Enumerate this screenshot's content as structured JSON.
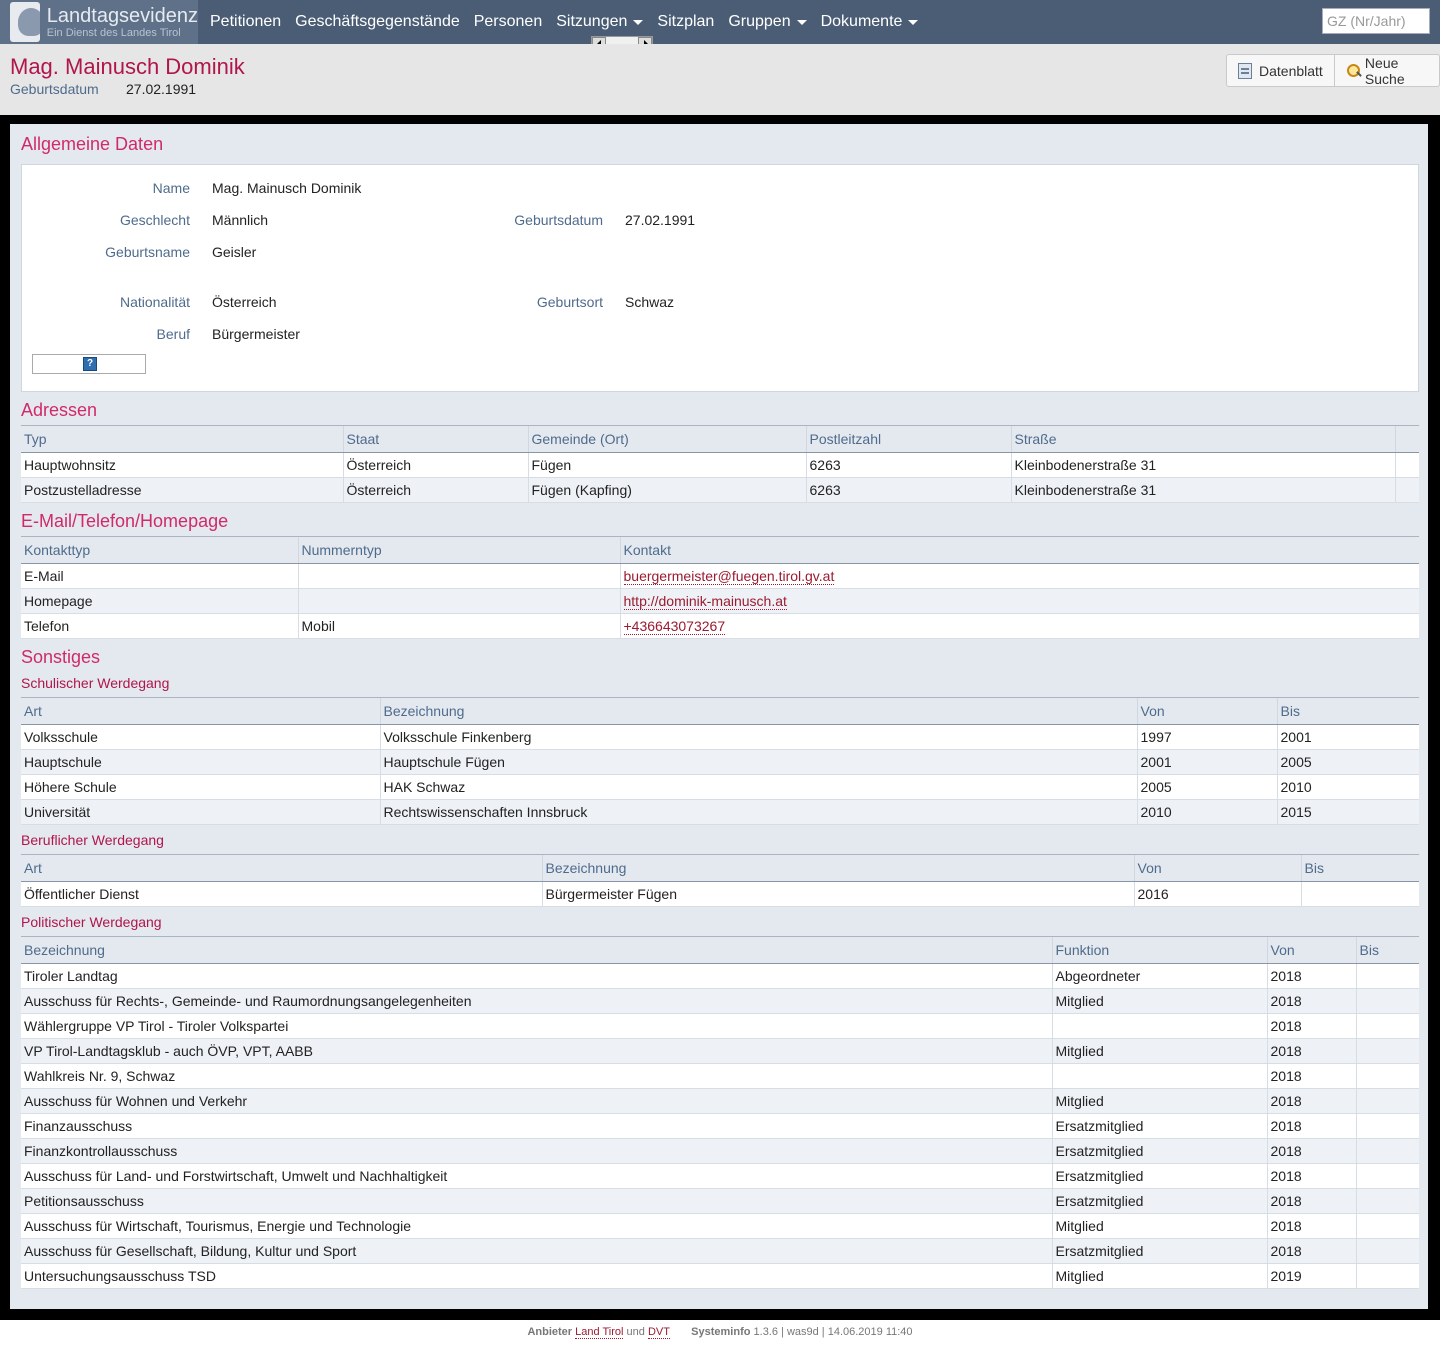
{
  "brand": {
    "title": "Landtagsevidenz",
    "subtitle": "Ein Dienst des Landes Tirol"
  },
  "nav": {
    "items": [
      {
        "label": "Petitionen",
        "dropdown": false
      },
      {
        "label": "Geschäftsgegenstände",
        "dropdown": false
      },
      {
        "label": "Personen",
        "dropdown": false
      },
      {
        "label": "Sitzungen",
        "dropdown": true
      },
      {
        "label": "Sitzplan",
        "dropdown": false
      },
      {
        "label": "Gruppen",
        "dropdown": true
      },
      {
        "label": "Dokumente",
        "dropdown": true
      }
    ],
    "search_placeholder": "GZ (Nr/Jahr)"
  },
  "header": {
    "title": "Mag. Mainusch Dominik",
    "birth_label": "Geburtsdatum",
    "birth_value": "27.02.1991",
    "btn_datenblatt": "Datenblatt",
    "btn_neue_suche": "Neue Suche"
  },
  "allgemein": {
    "title": "Allgemeine Daten",
    "name_label": "Name",
    "name_value": "Mag. Mainusch Dominik",
    "geschlecht_label": "Geschlecht",
    "geschlecht_value": "Männlich",
    "geburtsdatum_label": "Geburtsdatum",
    "geburtsdatum_value": "27.02.1991",
    "geburtsname_label": "Geburtsname",
    "geburtsname_value": "Geisler",
    "nationalitaet_label": "Nationalität",
    "nationalitaet_value": "Österreich",
    "geburtsort_label": "Geburtsort",
    "geburtsort_value": "Schwaz",
    "beruf_label": "Beruf",
    "beruf_value": "Bürgermeister"
  },
  "adressen": {
    "title": "Adressen",
    "headers": [
      "Typ",
      "Staat",
      "Gemeinde (Ort)",
      "Postleitzahl",
      "Straße",
      ""
    ],
    "rows": [
      [
        "Hauptwohnsitz",
        "Österreich",
        "Fügen",
        "6263",
        "Kleinbodenerstraße 31",
        ""
      ],
      [
        "Postzustelladresse",
        "Österreich",
        "Fügen (Kapfing)",
        "6263",
        "Kleinbodenerstraße 31",
        ""
      ]
    ]
  },
  "kontakt": {
    "title": "E-Mail/Telefon/Homepage",
    "headers": [
      "Kontakttyp",
      "Nummerntyp",
      "Kontakt"
    ],
    "rows": [
      [
        "E-Mail",
        "",
        "buergermeister@fuegen.tirol.gv.at"
      ],
      [
        "Homepage",
        "",
        "http://dominik-mainusch.at"
      ],
      [
        "Telefon",
        "Mobil",
        "+436643073267"
      ]
    ]
  },
  "sonstiges": {
    "title": "Sonstiges",
    "schule": {
      "title": "Schulischer Werdegang",
      "headers": [
        "Art",
        "Bezeichnung",
        "Von",
        "Bis"
      ],
      "rows": [
        [
          "Volksschule",
          "Volksschule Finkenberg",
          "1997",
          "2001"
        ],
        [
          "Hauptschule",
          "Hauptschule Fügen",
          "2001",
          "2005"
        ],
        [
          "Höhere Schule",
          "HAK Schwaz",
          "2005",
          "2010"
        ],
        [
          "Universität",
          "Rechtswissenschaften Innsbruck",
          "2010",
          "2015"
        ]
      ]
    },
    "beruf": {
      "title": "Beruflicher Werdegang",
      "headers": [
        "Art",
        "Bezeichnung",
        "Von",
        "Bis"
      ],
      "rows": [
        [
          "Öffentlicher Dienst",
          "Bürgermeister Fügen",
          "2016",
          ""
        ]
      ]
    },
    "politik": {
      "title": "Politischer Werdegang",
      "headers": [
        "Bezeichnung",
        "Funktion",
        "Von",
        "Bis"
      ],
      "rows": [
        [
          "Tiroler Landtag",
          "Abgeordneter",
          "2018",
          ""
        ],
        [
          "Ausschuss für Rechts-, Gemeinde- und Raumordnungsangelegenheiten",
          "Mitglied",
          "2018",
          ""
        ],
        [
          "Wählergruppe VP Tirol - Tiroler Volkspartei",
          "",
          "2018",
          ""
        ],
        [
          "VP Tirol-Landtagsklub - auch ÖVP, VPT, AABB",
          "Mitglied",
          "2018",
          ""
        ],
        [
          "Wahlkreis Nr. 9, Schwaz",
          "",
          "2018",
          ""
        ],
        [
          "Ausschuss für Wohnen und Verkehr",
          "Mitglied",
          "2018",
          ""
        ],
        [
          "Finanzausschuss",
          "Ersatzmitglied",
          "2018",
          ""
        ],
        [
          "Finanzkontrollausschuss",
          "Ersatzmitglied",
          "2018",
          ""
        ],
        [
          "Ausschuss für Land- und Forstwirtschaft, Umwelt und Nachhaltigkeit",
          "Ersatzmitglied",
          "2018",
          ""
        ],
        [
          "Petitionsausschuss",
          "Ersatzmitglied",
          "2018",
          ""
        ],
        [
          "Ausschuss für Wirtschaft, Tourismus, Energie und Technologie",
          "Mitglied",
          "2018",
          ""
        ],
        [
          "Ausschuss für Gesellschaft, Bildung, Kultur und Sport",
          "Ersatzmitglied",
          "2018",
          ""
        ],
        [
          "Untersuchungsausschuss TSD",
          "Mitglied",
          "2019",
          ""
        ]
      ]
    }
  },
  "footer": {
    "anbieter_label": "Anbieter",
    "anbieter_link1": "Land Tirol",
    "anbieter_und": "und",
    "anbieter_link2": "DVT",
    "systeminfo_label": "Systeminfo",
    "systeminfo_value": "1.3.6 | was9d | 14.06.2019 11:40"
  }
}
